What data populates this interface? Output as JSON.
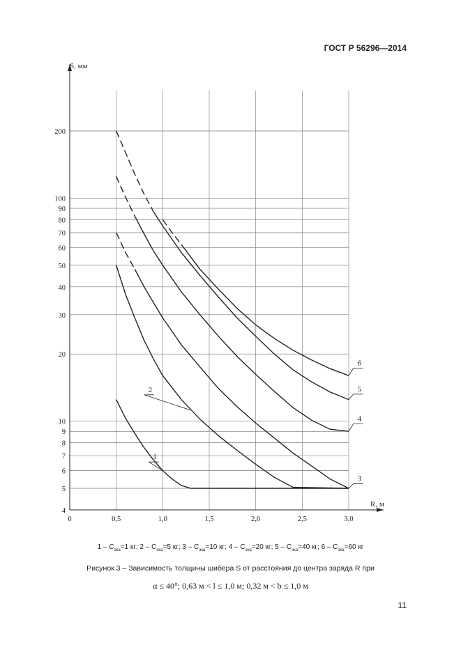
{
  "document": {
    "code": "ГОСТ Р 56296—2014",
    "page_number": "11"
  },
  "legend": {
    "items": [
      {
        "num": "1",
        "value": "1 кг"
      },
      {
        "num": "2",
        "value": "5 кг"
      },
      {
        "num": "3",
        "value": "10 кг"
      },
      {
        "num": "4",
        "value": "20 кг"
      },
      {
        "num": "5",
        "value": "40 кг"
      },
      {
        "num": "6",
        "value": "60 кг"
      }
    ],
    "symbol": "C",
    "subscript": "эка"
  },
  "caption": "Рисунок 3 – Зависимость толщины шибера S от расстояния до центра заряда R при",
  "condition": "α ≤ 40°; 0,63 м < l ≤ 1,0 м; 0,32 м < b ≤ 1,0 м",
  "chart_data": {
    "type": "line",
    "ylabel": "S, мм",
    "xlabel": "R, м",
    "yscale": "log",
    "xlim": [
      0,
      3.0
    ],
    "ylim": [
      4,
      200
    ],
    "x_ticks": [
      {
        "v": 0,
        "label": "0"
      },
      {
        "v": 0.5,
        "label": "0,5"
      },
      {
        "v": 1.0,
        "label": "1,0"
      },
      {
        "v": 1.5,
        "label": "1,5"
      },
      {
        "v": 2.0,
        "label": "2,0"
      },
      {
        "v": 2.5,
        "label": "2,5"
      },
      {
        "v": 3.0,
        "label": "3,0"
      }
    ],
    "y_ticks": [
      {
        "v": 4,
        "label": "4"
      },
      {
        "v": 5,
        "label": "5"
      },
      {
        "v": 6,
        "label": "6"
      },
      {
        "v": 7,
        "label": "7"
      },
      {
        "v": 8,
        "label": "8"
      },
      {
        "v": 9,
        "label": "9"
      },
      {
        "v": 10,
        "label": "10"
      },
      {
        "v": 20,
        "label": "20"
      },
      {
        "v": 30,
        "label": "30"
      },
      {
        "v": 40,
        "label": "40"
      },
      {
        "v": 50,
        "label": "50"
      },
      {
        "v": 60,
        "label": "60"
      },
      {
        "v": 70,
        "label": "70"
      },
      {
        "v": 80,
        "label": "80"
      },
      {
        "v": 90,
        "label": "90"
      },
      {
        "v": 100,
        "label": "100"
      },
      {
        "v": 200,
        "label": "200"
      }
    ],
    "grid": true,
    "series": [
      {
        "name": "1",
        "dashed": [],
        "solid": [
          [
            0.5,
            12.5
          ],
          [
            0.6,
            10.3
          ],
          [
            0.7,
            8.8
          ],
          [
            0.8,
            7.6
          ],
          [
            0.9,
            6.7
          ],
          [
            1.0,
            6.0
          ],
          [
            1.1,
            5.5
          ],
          [
            1.2,
            5.15
          ],
          [
            1.3,
            5.0
          ],
          [
            3.0,
            5.0
          ]
        ]
      },
      {
        "name": "2",
        "dashed": [],
        "solid": [
          [
            0.5,
            50
          ],
          [
            0.6,
            37
          ],
          [
            0.7,
            29
          ],
          [
            0.8,
            23
          ],
          [
            0.9,
            19
          ],
          [
            1.0,
            16
          ],
          [
            1.2,
            12.5
          ],
          [
            1.4,
            10.2
          ],
          [
            1.6,
            8.6
          ],
          [
            1.8,
            7.4
          ],
          [
            2.0,
            6.4
          ],
          [
            2.2,
            5.6
          ],
          [
            2.4,
            5.05
          ],
          [
            3.0,
            5.0
          ]
        ]
      },
      {
        "name": "3",
        "dashed": [
          [
            0.5,
            70
          ],
          [
            0.6,
            57
          ],
          [
            0.7,
            48
          ]
        ],
        "solid": [
          [
            0.7,
            48
          ],
          [
            0.8,
            40
          ],
          [
            0.9,
            34
          ],
          [
            1.0,
            29
          ],
          [
            1.2,
            22
          ],
          [
            1.4,
            17.5
          ],
          [
            1.6,
            14
          ],
          [
            1.8,
            11.6
          ],
          [
            2.0,
            9.8
          ],
          [
            2.2,
            8.4
          ],
          [
            2.4,
            7.2
          ],
          [
            2.6,
            6.3
          ],
          [
            2.8,
            5.5
          ],
          [
            3.0,
            5.0
          ]
        ]
      },
      {
        "name": "4",
        "dashed": [
          [
            0.5,
            125
          ],
          [
            0.6,
            101
          ],
          [
            0.7,
            83
          ]
        ],
        "solid": [
          [
            0.7,
            83
          ],
          [
            0.8,
            69
          ],
          [
            0.9,
            58
          ],
          [
            1.0,
            50
          ],
          [
            1.2,
            38
          ],
          [
            1.4,
            30
          ],
          [
            1.6,
            24
          ],
          [
            1.8,
            19.5
          ],
          [
            2.0,
            16.2
          ],
          [
            2.2,
            13.6
          ],
          [
            2.4,
            11.5
          ],
          [
            2.6,
            10.1
          ],
          [
            2.8,
            9.2
          ],
          [
            3.0,
            9.0
          ]
        ]
      },
      {
        "name": "5",
        "dashed": [
          [
            0.5,
            200
          ],
          [
            0.6,
            160
          ],
          [
            0.7,
            128
          ],
          [
            0.8,
            104
          ],
          [
            0.9,
            87
          ]
        ],
        "solid": [
          [
            0.9,
            87
          ],
          [
            1.0,
            75
          ],
          [
            1.2,
            57
          ],
          [
            1.4,
            45
          ],
          [
            1.6,
            36
          ],
          [
            1.8,
            29
          ],
          [
            2.0,
            24
          ],
          [
            2.2,
            20
          ],
          [
            2.4,
            17
          ],
          [
            2.6,
            15
          ],
          [
            2.8,
            13.5
          ],
          [
            3.0,
            12.5
          ]
        ]
      },
      {
        "name": "6",
        "dashed": [
          [
            1.0,
            80
          ],
          [
            1.1,
            70
          ],
          [
            1.2,
            62
          ]
        ],
        "solid": [
          [
            1.2,
            62
          ],
          [
            1.4,
            48
          ],
          [
            1.6,
            39
          ],
          [
            1.8,
            32
          ],
          [
            2.0,
            27
          ],
          [
            2.2,
            23.5
          ],
          [
            2.4,
            20.8
          ],
          [
            2.6,
            18.8
          ],
          [
            2.8,
            17.2
          ],
          [
            3.0,
            16.0
          ]
        ]
      }
    ]
  }
}
